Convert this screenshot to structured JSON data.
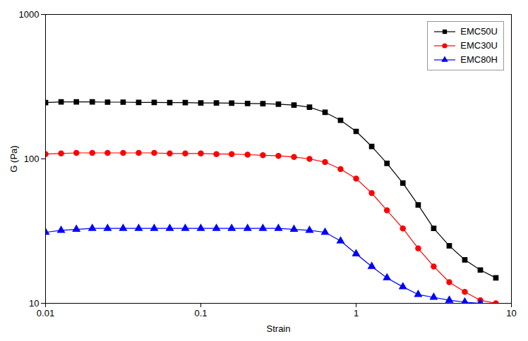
{
  "chart_data": {
    "type": "line",
    "xlabel": "Strain",
    "ylabel": "G (Pa)",
    "log": true,
    "xlim": [
      0.01,
      10
    ],
    "ylim": [
      10,
      1000
    ],
    "xticks": [
      0.01,
      0.1,
      1,
      10
    ],
    "yticks": [
      10,
      100,
      1000
    ],
    "grid": false,
    "legend": "upper right",
    "series": [
      {
        "name": "EMC50U",
        "color": "#000000",
        "marker": "square",
        "x": [
          0.01,
          0.0126,
          0.0158,
          0.02,
          0.0251,
          0.0316,
          0.0398,
          0.0501,
          0.0631,
          0.0794,
          0.1,
          0.126,
          0.158,
          0.2,
          0.251,
          0.316,
          0.398,
          0.501,
          0.631,
          0.794,
          1.0,
          1.26,
          1.58,
          2.0,
          2.51,
          3.16,
          3.98,
          5.01,
          6.31,
          7.94
        ],
        "values": [
          245,
          248,
          248,
          248,
          247,
          247,
          246,
          246,
          245,
          245,
          244,
          244,
          243,
          242,
          241,
          239,
          236,
          228,
          210,
          185,
          155,
          122,
          93,
          68,
          48,
          33,
          25,
          20,
          17,
          15
        ]
      },
      {
        "name": "EMC30U",
        "color": "#ff0000",
        "marker": "circle",
        "x": [
          0.01,
          0.0126,
          0.0158,
          0.02,
          0.0251,
          0.0316,
          0.0398,
          0.0501,
          0.0631,
          0.0794,
          0.1,
          0.126,
          0.158,
          0.2,
          0.251,
          0.316,
          0.398,
          0.501,
          0.631,
          0.794,
          1.0,
          1.26,
          1.58,
          2.0,
          2.51,
          3.16,
          3.98,
          5.01,
          6.31,
          7.94
        ],
        "values": [
          108,
          109,
          110,
          110,
          110,
          110,
          110,
          110,
          109,
          109,
          109,
          108,
          108,
          107,
          106,
          105,
          103,
          100,
          95,
          85,
          73,
          58,
          44,
          33,
          24,
          18,
          14,
          12,
          10.5,
          10
        ]
      },
      {
        "name": "EMC80H",
        "color": "#0000ff",
        "marker": "triangle",
        "x": [
          0.01,
          0.0126,
          0.0158,
          0.02,
          0.0251,
          0.0316,
          0.0398,
          0.0501,
          0.0631,
          0.0794,
          0.1,
          0.126,
          0.158,
          0.2,
          0.251,
          0.316,
          0.398,
          0.501,
          0.631,
          0.794,
          1.0,
          1.26,
          1.58,
          2.0,
          2.51,
          3.16,
          3.98,
          5.01,
          6.31
        ],
        "values": [
          31,
          32,
          32.5,
          33,
          33,
          33,
          33,
          33,
          33,
          33,
          33,
          33,
          33,
          33,
          33,
          33,
          32.5,
          32,
          31,
          27,
          22,
          18,
          15,
          13,
          11.5,
          11,
          10.5,
          10.2,
          10
        ]
      }
    ]
  }
}
